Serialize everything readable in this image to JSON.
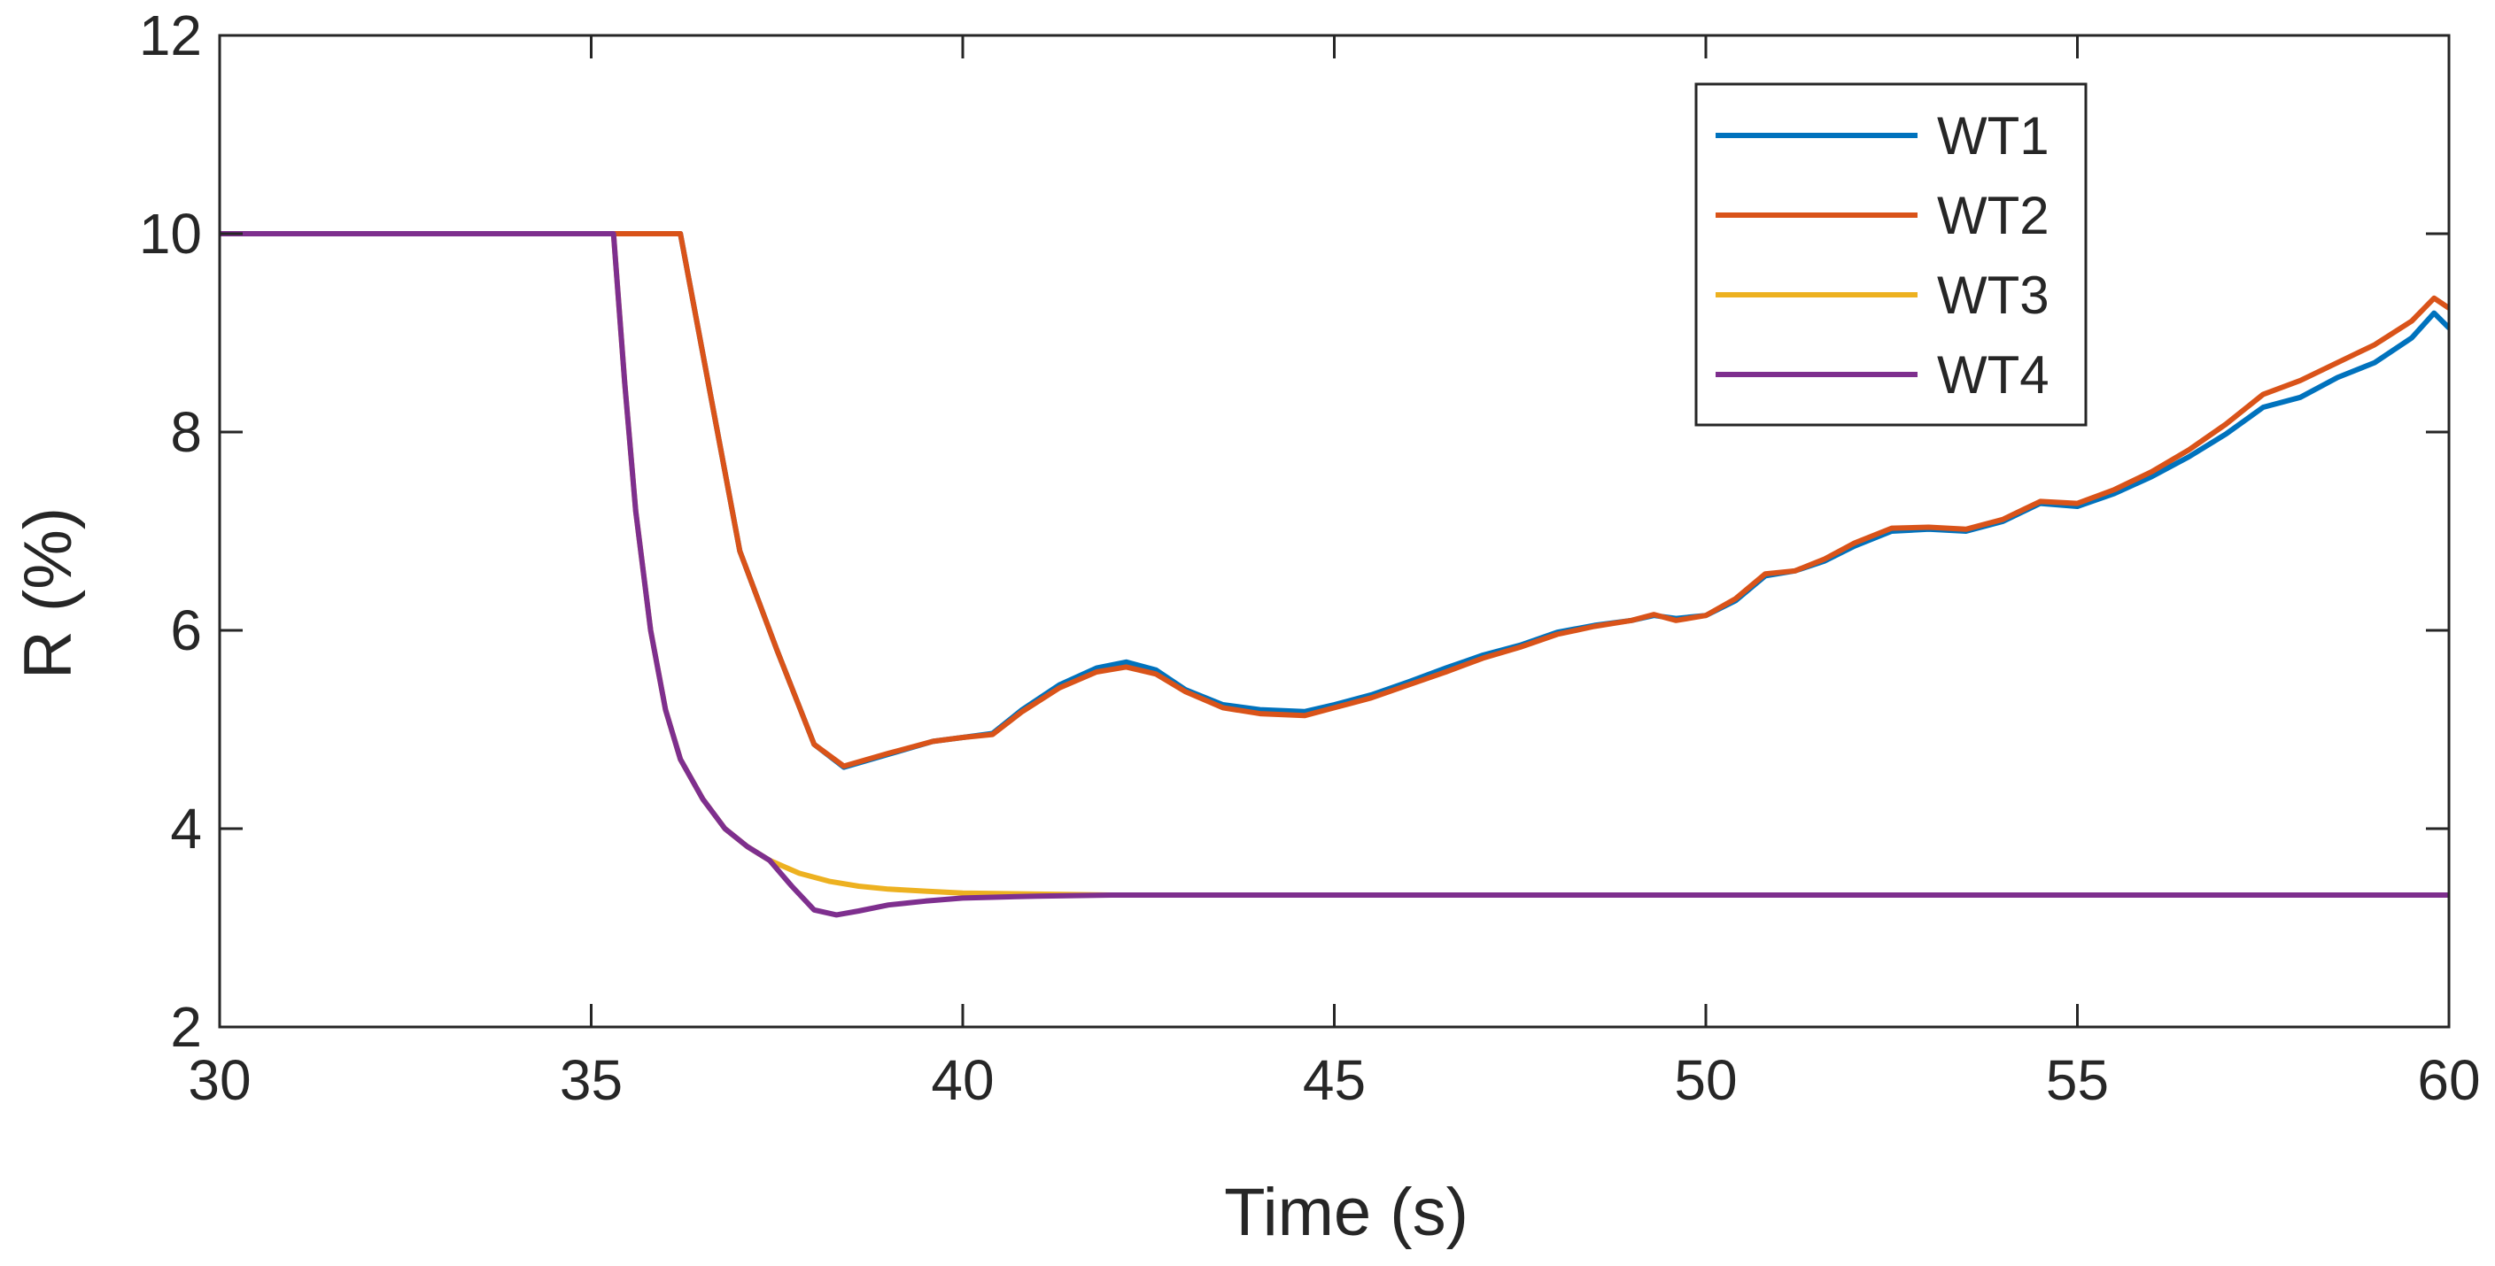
{
  "chart_data": {
    "type": "line",
    "title": "",
    "xlabel": "Time (s)",
    "ylabel": "R (%)",
    "xlim": [
      30,
      60
    ],
    "ylim": [
      2,
      12
    ],
    "xticks": [
      30,
      35,
      40,
      45,
      50,
      55,
      60
    ],
    "yticks": [
      2,
      4,
      6,
      8,
      10,
      12
    ],
    "legend_position": "top-right",
    "grid": false,
    "colors": {
      "axis": "#262626"
    },
    "series": [
      {
        "name": "WT1",
        "color": "#0072BD",
        "x": [
          30,
          36.2,
          36.6,
          37.0,
          37.5,
          38.0,
          38.4,
          39.0,
          39.6,
          40.0,
          40.4,
          40.8,
          41.3,
          41.8,
          42.2,
          42.6,
          43.0,
          43.5,
          44.0,
          44.6,
          45.0,
          45.5,
          46.0,
          46.5,
          47.0,
          47.5,
          48.0,
          48.5,
          49.0,
          49.3,
          49.6,
          50.0,
          50.4,
          50.8,
          51.2,
          51.6,
          52.0,
          52.5,
          53.0,
          53.5,
          54.0,
          54.5,
          55.0,
          55.5,
          56.0,
          56.5,
          57.0,
          57.5,
          58.0,
          58.5,
          59.0,
          59.5,
          59.8,
          60.0
        ],
        "y": [
          10.0,
          10.0,
          8.4,
          6.8,
          5.8,
          4.85,
          4.62,
          4.75,
          4.88,
          4.92,
          4.96,
          5.2,
          5.45,
          5.62,
          5.68,
          5.6,
          5.4,
          5.25,
          5.2,
          5.18,
          5.25,
          5.35,
          5.48,
          5.62,
          5.75,
          5.85,
          5.98,
          6.05,
          6.1,
          6.15,
          6.12,
          6.15,
          6.3,
          6.55,
          6.6,
          6.7,
          6.85,
          7.0,
          7.02,
          7.0,
          7.1,
          7.28,
          7.25,
          7.38,
          7.55,
          7.75,
          7.98,
          8.25,
          8.35,
          8.55,
          8.7,
          8.95,
          9.2,
          9.05
        ]
      },
      {
        "name": "WT2",
        "color": "#D95319",
        "x": [
          30,
          36.2,
          36.6,
          37.0,
          37.5,
          38.0,
          38.4,
          39.0,
          39.6,
          40.0,
          40.4,
          40.8,
          41.3,
          41.8,
          42.2,
          42.6,
          43.0,
          43.5,
          44.0,
          44.6,
          45.0,
          45.5,
          46.0,
          46.5,
          47.0,
          47.5,
          48.0,
          48.5,
          49.0,
          49.3,
          49.6,
          50.0,
          50.4,
          50.8,
          51.2,
          51.6,
          52.0,
          52.5,
          53.0,
          53.5,
          54.0,
          54.5,
          55.0,
          55.5,
          56.0,
          56.5,
          57.0,
          57.5,
          58.0,
          58.5,
          59.0,
          59.5,
          59.8,
          60.0
        ],
        "y": [
          10.0,
          10.0,
          8.4,
          6.8,
          5.8,
          4.85,
          4.63,
          4.76,
          4.88,
          4.92,
          4.95,
          5.18,
          5.42,
          5.58,
          5.63,
          5.56,
          5.38,
          5.22,
          5.16,
          5.14,
          5.22,
          5.32,
          5.45,
          5.58,
          5.72,
          5.83,
          5.96,
          6.04,
          6.1,
          6.16,
          6.1,
          6.15,
          6.32,
          6.57,
          6.6,
          6.72,
          6.88,
          7.03,
          7.04,
          7.02,
          7.12,
          7.3,
          7.28,
          7.42,
          7.6,
          7.82,
          8.08,
          8.38,
          8.52,
          8.7,
          8.88,
          9.12,
          9.35,
          9.25
        ]
      },
      {
        "name": "WT3",
        "color": "#EDB120",
        "x": [
          30,
          35.3,
          35.45,
          35.6,
          35.8,
          36.0,
          36.2,
          36.5,
          36.8,
          37.1,
          37.4,
          37.8,
          38.2,
          38.6,
          39.0,
          39.5,
          40.0,
          41.0,
          42.0,
          60.0
        ],
        "y": [
          10.0,
          10.0,
          8.5,
          7.2,
          6.0,
          5.2,
          4.7,
          4.3,
          4.0,
          3.82,
          3.68,
          3.55,
          3.47,
          3.42,
          3.39,
          3.37,
          3.35,
          3.34,
          3.33,
          3.33
        ]
      },
      {
        "name": "WT4",
        "color": "#7E2F8E",
        "x": [
          30,
          35.3,
          35.45,
          35.6,
          35.8,
          36.0,
          36.2,
          36.5,
          36.8,
          37.1,
          37.4,
          37.7,
          38.0,
          38.3,
          38.6,
          39.0,
          39.5,
          40.0,
          41.0,
          42.0,
          60.0
        ],
        "y": [
          10.0,
          10.0,
          8.5,
          7.2,
          6.0,
          5.2,
          4.7,
          4.3,
          4.0,
          3.82,
          3.68,
          3.42,
          3.18,
          3.13,
          3.17,
          3.23,
          3.27,
          3.3,
          3.32,
          3.33,
          3.33
        ]
      }
    ]
  }
}
